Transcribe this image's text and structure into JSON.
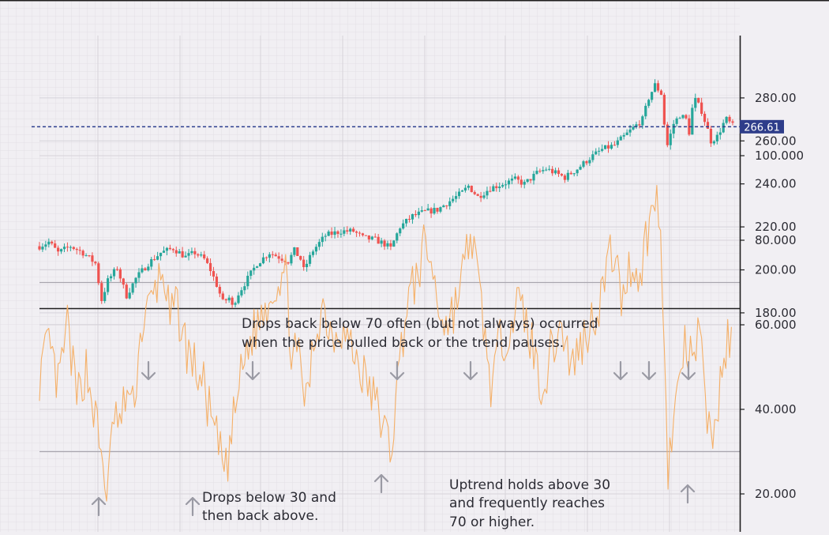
{
  "chart_data": [
    {
      "type": "candlestick",
      "title": "",
      "y_ticks": [
        180,
        200,
        220,
        240,
        260,
        280
      ],
      "y_tick_labels": [
        "180.00",
        "200.00",
        "220.00",
        "240.00",
        "260.00",
        "280.00"
      ],
      "ylim": [
        167,
        292
      ],
      "last_price": 266.61,
      "last_price_label": "266.61",
      "up_color": "#26a69a",
      "down_color": "#ef5350",
      "price_path": [
        {
          "x": 0,
          "y": 211
        },
        {
          "x": 3,
          "y": 213
        },
        {
          "x": 6,
          "y": 208
        },
        {
          "x": 10,
          "y": 211
        },
        {
          "x": 14,
          "y": 208
        },
        {
          "x": 18,
          "y": 203
        },
        {
          "x": 20,
          "y": 186
        },
        {
          "x": 22,
          "y": 195
        },
        {
          "x": 25,
          "y": 201
        },
        {
          "x": 27,
          "y": 192
        },
        {
          "x": 28,
          "y": 188
        },
        {
          "x": 31,
          "y": 196
        },
        {
          "x": 35,
          "y": 203
        },
        {
          "x": 39,
          "y": 208
        },
        {
          "x": 43,
          "y": 210
        },
        {
          "x": 47,
          "y": 206
        },
        {
          "x": 50,
          "y": 208
        },
        {
          "x": 53,
          "y": 205
        },
        {
          "x": 55,
          "y": 200
        },
        {
          "x": 57,
          "y": 193
        },
        {
          "x": 59,
          "y": 185
        },
        {
          "x": 61,
          "y": 187
        },
        {
          "x": 62,
          "y": 183
        },
        {
          "x": 64,
          "y": 189
        },
        {
          "x": 67,
          "y": 196
        },
        {
          "x": 70,
          "y": 203
        },
        {
          "x": 74,
          "y": 208
        },
        {
          "x": 77,
          "y": 206
        },
        {
          "x": 80,
          "y": 204
        },
        {
          "x": 82,
          "y": 209
        },
        {
          "x": 84,
          "y": 205
        },
        {
          "x": 85,
          "y": 200
        },
        {
          "x": 88,
          "y": 209
        },
        {
          "x": 92,
          "y": 216
        },
        {
          "x": 97,
          "y": 218
        },
        {
          "x": 101,
          "y": 218
        },
        {
          "x": 104,
          "y": 215
        },
        {
          "x": 108,
          "y": 214
        },
        {
          "x": 111,
          "y": 212
        },
        {
          "x": 113,
          "y": 210
        },
        {
          "x": 116,
          "y": 220
        },
        {
          "x": 120,
          "y": 225
        },
        {
          "x": 124,
          "y": 227
        },
        {
          "x": 128,
          "y": 228
        },
        {
          "x": 132,
          "y": 232
        },
        {
          "x": 136,
          "y": 236
        },
        {
          "x": 138,
          "y": 239
        },
        {
          "x": 141,
          "y": 234
        },
        {
          "x": 145,
          "y": 238
        },
        {
          "x": 149,
          "y": 240
        },
        {
          "x": 153,
          "y": 242
        },
        {
          "x": 156,
          "y": 240
        },
        {
          "x": 160,
          "y": 245
        },
        {
          "x": 163,
          "y": 247
        },
        {
          "x": 166,
          "y": 245
        },
        {
          "x": 169,
          "y": 243
        },
        {
          "x": 173,
          "y": 247
        },
        {
          "x": 177,
          "y": 252
        },
        {
          "x": 181,
          "y": 256
        },
        {
          "x": 185,
          "y": 258
        },
        {
          "x": 188,
          "y": 262
        },
        {
          "x": 191,
          "y": 266
        },
        {
          "x": 194,
          "y": 270
        },
        {
          "x": 196,
          "y": 280
        },
        {
          "x": 198,
          "y": 286
        },
        {
          "x": 200,
          "y": 282
        },
        {
          "x": 201,
          "y": 268
        },
        {
          "x": 202,
          "y": 258
        },
        {
          "x": 204,
          "y": 268
        },
        {
          "x": 206,
          "y": 272
        },
        {
          "x": 208,
          "y": 270
        },
        {
          "x": 209,
          "y": 264
        },
        {
          "x": 210,
          "y": 275
        },
        {
          "x": 211,
          "y": 279
        },
        {
          "x": 213,
          "y": 274
        },
        {
          "x": 215,
          "y": 265
        },
        {
          "x": 216,
          "y": 260
        },
        {
          "x": 218,
          "y": 262
        },
        {
          "x": 220,
          "y": 268
        },
        {
          "x": 221,
          "y": 270
        },
        {
          "x": 223,
          "y": 267
        }
      ]
    },
    {
      "type": "line",
      "title": "",
      "y_ticks": [
        20,
        40,
        60,
        80,
        100
      ],
      "y_tick_labels": [
        "20.000",
        "40.000",
        "60.000",
        "80.000",
        "100.000"
      ],
      "ylim": [
        0,
        105
      ],
      "reference_lines": [
        30,
        70
      ],
      "line_color": "#f5b068",
      "rsi_path": [
        {
          "x": 0,
          "y": 48
        },
        {
          "x": 3,
          "y": 55
        },
        {
          "x": 6,
          "y": 45
        },
        {
          "x": 9,
          "y": 60
        },
        {
          "x": 12,
          "y": 42
        },
        {
          "x": 15,
          "y": 50
        },
        {
          "x": 18,
          "y": 38
        },
        {
          "x": 20,
          "y": 28
        },
        {
          "x": 22,
          "y": 20
        },
        {
          "x": 24,
          "y": 40
        },
        {
          "x": 26,
          "y": 35
        },
        {
          "x": 28,
          "y": 45
        },
        {
          "x": 30,
          "y": 40
        },
        {
          "x": 33,
          "y": 60
        },
        {
          "x": 36,
          "y": 65
        },
        {
          "x": 38,
          "y": 70
        },
        {
          "x": 40,
          "y": 73
        },
        {
          "x": 42,
          "y": 60
        },
        {
          "x": 44,
          "y": 65
        },
        {
          "x": 47,
          "y": 55
        },
        {
          "x": 50,
          "y": 50
        },
        {
          "x": 53,
          "y": 45
        },
        {
          "x": 56,
          "y": 35
        },
        {
          "x": 58,
          "y": 30
        },
        {
          "x": 60,
          "y": 25
        },
        {
          "x": 62,
          "y": 35
        },
        {
          "x": 64,
          "y": 45
        },
        {
          "x": 67,
          "y": 55
        },
        {
          "x": 70,
          "y": 60
        },
        {
          "x": 73,
          "y": 65
        },
        {
          "x": 76,
          "y": 70
        },
        {
          "x": 79,
          "y": 73
        },
        {
          "x": 81,
          "y": 55
        },
        {
          "x": 84,
          "y": 50
        },
        {
          "x": 86,
          "y": 40
        },
        {
          "x": 88,
          "y": 55
        },
        {
          "x": 91,
          "y": 65
        },
        {
          "x": 94,
          "y": 58
        },
        {
          "x": 97,
          "y": 60
        },
        {
          "x": 100,
          "y": 55
        },
        {
          "x": 103,
          "y": 50
        },
        {
          "x": 106,
          "y": 45
        },
        {
          "x": 109,
          "y": 40
        },
        {
          "x": 111,
          "y": 35
        },
        {
          "x": 113,
          "y": 30
        },
        {
          "x": 115,
          "y": 45
        },
        {
          "x": 118,
          "y": 65
        },
        {
          "x": 121,
          "y": 70
        },
        {
          "x": 124,
          "y": 79
        },
        {
          "x": 126,
          "y": 75
        },
        {
          "x": 128,
          "y": 65
        },
        {
          "x": 131,
          "y": 60
        },
        {
          "x": 134,
          "y": 65
        },
        {
          "x": 137,
          "y": 75
        },
        {
          "x": 139,
          "y": 82
        },
        {
          "x": 141,
          "y": 70
        },
        {
          "x": 143,
          "y": 60
        },
        {
          "x": 145,
          "y": 45
        },
        {
          "x": 148,
          "y": 55
        },
        {
          "x": 151,
          "y": 60
        },
        {
          "x": 154,
          "y": 65
        },
        {
          "x": 157,
          "y": 60
        },
        {
          "x": 160,
          "y": 50
        },
        {
          "x": 162,
          "y": 45
        },
        {
          "x": 165,
          "y": 55
        },
        {
          "x": 168,
          "y": 60
        },
        {
          "x": 171,
          "y": 50
        },
        {
          "x": 174,
          "y": 55
        },
        {
          "x": 177,
          "y": 60
        },
        {
          "x": 180,
          "y": 65
        },
        {
          "x": 183,
          "y": 75
        },
        {
          "x": 185,
          "y": 78
        },
        {
          "x": 187,
          "y": 65
        },
        {
          "x": 189,
          "y": 72
        },
        {
          "x": 191,
          "y": 75
        },
        {
          "x": 193,
          "y": 70
        },
        {
          "x": 195,
          "y": 80
        },
        {
          "x": 197,
          "y": 86
        },
        {
          "x": 199,
          "y": 91
        },
        {
          "x": 201,
          "y": 60
        },
        {
          "x": 202,
          "y": 26
        },
        {
          "x": 204,
          "y": 35
        },
        {
          "x": 206,
          "y": 50
        },
        {
          "x": 208,
          "y": 55
        },
        {
          "x": 210,
          "y": 50
        },
        {
          "x": 212,
          "y": 58
        },
        {
          "x": 214,
          "y": 45
        },
        {
          "x": 216,
          "y": 32
        },
        {
          "x": 218,
          "y": 40
        },
        {
          "x": 220,
          "y": 50
        },
        {
          "x": 222,
          "y": 58
        },
        {
          "x": 223,
          "y": 52
        }
      ]
    }
  ],
  "annotations": {
    "pullback_line1": "Drops back below 70 often (but not always) occurred",
    "pullback_line2": "when the price pulled back or the trend pauses.",
    "below30_line1": "Drops below 30 and",
    "below30_line2": "then back above.",
    "uptrend_line1": "Uptrend holds above 30",
    "uptrend_line2": "and frequently reaches",
    "uptrend_line3": "70 or higher."
  }
}
